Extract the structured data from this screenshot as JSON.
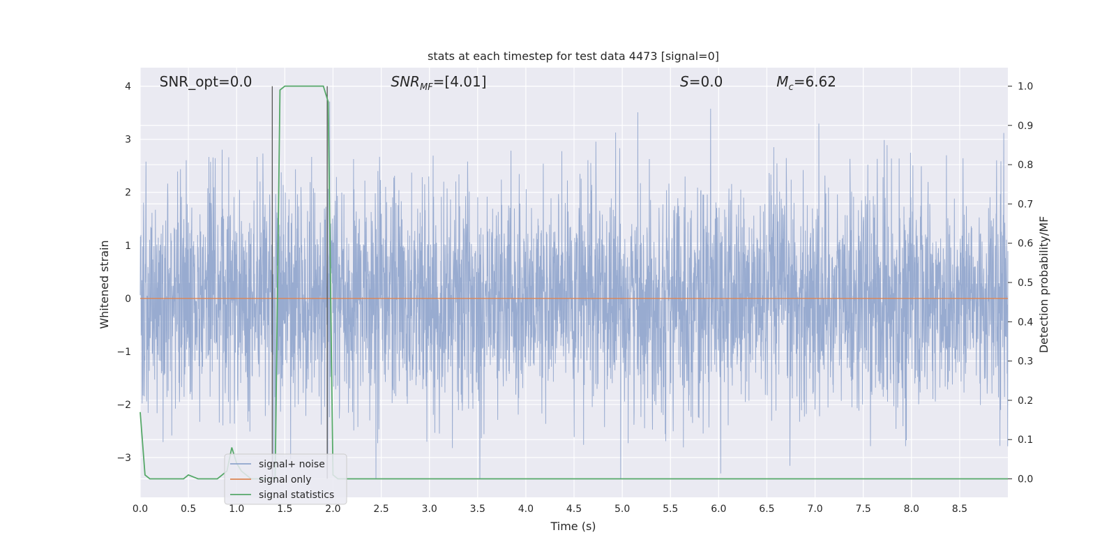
{
  "chart_data": {
    "type": "line",
    "title": "stats at each timestep for test data 4473 [signal=0]",
    "xlabel": "Time (s)",
    "ylabel_left": "Whitened strain",
    "ylabel_right": "Detection probability/MF",
    "xlim": [
      0,
      9.0
    ],
    "ylim_left": [
      -3.75,
      4.35
    ],
    "ylim_right": [
      -0.047,
      1.047
    ],
    "x_ticks": [
      "0.0",
      "0.5",
      "1.0",
      "1.5",
      "2.0",
      "2.5",
      "3.0",
      "3.5",
      "4.0",
      "4.5",
      "5.0",
      "5.5",
      "6.0",
      "6.5",
      "7.0",
      "7.5",
      "8.0",
      "8.5"
    ],
    "y_ticks_left": [
      "4",
      "3",
      "2",
      "1",
      "0",
      "−1",
      "−2",
      "−3"
    ],
    "y_ticks_right": [
      "1.0",
      "0.9",
      "0.8",
      "0.7",
      "0.6",
      "0.5",
      "0.4",
      "0.3",
      "0.2",
      "0.1",
      "0.0"
    ],
    "grid": true,
    "legend_position": "lower-left",
    "annotations": [
      {
        "text": "SNR_opt=0.0",
        "x": 0.2
      },
      {
        "text": "SNR",
        "sub": "MF",
        "rest": "=[4.01]",
        "x": 2.6
      },
      {
        "text": "S",
        "rest": "=0.0",
        "x": 5.6
      },
      {
        "text": "M",
        "sub": "c",
        "rest": "=6.62",
        "x": 6.6
      }
    ],
    "vertical_markers": [
      1.37,
      1.94
    ],
    "series": [
      {
        "name": "signal+ noise",
        "axis": "left",
        "color": "#8fa4cc",
        "description": "whitened noise, std ~1"
      },
      {
        "name": "signal only",
        "axis": "left",
        "color": "#dd8452",
        "values_const": 0.0
      },
      {
        "name": "signal statistics",
        "axis": "right",
        "color": "#55a868",
        "x": [
          0.0,
          0.05,
          0.1,
          0.15,
          0.2,
          0.25,
          0.3,
          0.35,
          0.4,
          0.45,
          0.5,
          0.55,
          0.6,
          0.65,
          0.7,
          0.75,
          0.8,
          0.85,
          0.9,
          0.95,
          1.0,
          1.05,
          1.1,
          1.15,
          1.2,
          1.25,
          1.3,
          1.35,
          1.4,
          1.45,
          1.5,
          1.55,
          1.6,
          1.65,
          1.7,
          1.75,
          1.8,
          1.85,
          1.9,
          1.95,
          2.0,
          2.05,
          2.1,
          9.0
        ],
        "y": [
          0.17,
          0.01,
          0.0,
          0.0,
          0.0,
          0.0,
          0.0,
          0.0,
          0.0,
          0.0,
          0.01,
          0.005,
          0.0,
          0.0,
          0.0,
          0.0,
          0.0,
          0.01,
          0.02,
          0.08,
          0.04,
          0.02,
          0.01,
          0.0,
          0.0,
          0.0,
          0.0,
          0.0,
          0.0,
          0.99,
          1.0,
          1.0,
          1.0,
          1.0,
          1.0,
          1.0,
          1.0,
          1.0,
          1.0,
          0.96,
          0.01,
          0.0,
          0.0,
          0.0
        ]
      }
    ]
  }
}
